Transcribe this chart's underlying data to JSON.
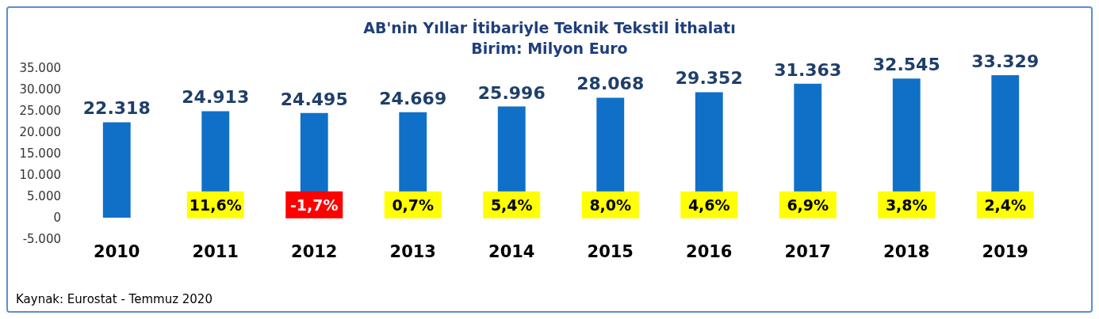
{
  "chart_data": {
    "type": "bar",
    "title": "AB'nin Yıllar İtibariyle Teknik Tekstil İthalatı",
    "subtitle": "Birim: Milyon Euro",
    "categories": [
      "2010",
      "2011",
      "2012",
      "2013",
      "2014",
      "2015",
      "2016",
      "2017",
      "2018",
      "2019"
    ],
    "values": [
      22318,
      24913,
      24495,
      24669,
      25996,
      28068,
      29352,
      31363,
      32545,
      33329
    ],
    "value_labels": [
      "22.318",
      "24.913",
      "24.495",
      "24.669",
      "25.996",
      "28.068",
      "29.352",
      "31.363",
      "32.545",
      "33.329"
    ],
    "color": "#1070c8",
    "ylim": [
      -5000,
      35000
    ],
    "yticks": [
      {
        "value": -5000,
        "label": "-5.000"
      },
      {
        "value": 0,
        "label": "0"
      },
      {
        "value": 5000,
        "label": "5.000"
      },
      {
        "value": 10000,
        "label": "10.000"
      },
      {
        "value": 15000,
        "label": "15.000"
      },
      {
        "value": 20000,
        "label": "20.000"
      },
      {
        "value": 25000,
        "label": "25.000"
      },
      {
        "value": 30000,
        "label": "30.000"
      },
      {
        "value": 35000,
        "label": "35.000"
      }
    ],
    "annotations": [
      "11,6%",
      "-1,7%",
      "0,7%",
      "5,4%",
      "8,0%",
      "4,6%",
      "6,9%",
      "3,8%",
      "2,4%",
      "Kaynak: Eurostat - Temmuz 2020"
    ]
  }
}
